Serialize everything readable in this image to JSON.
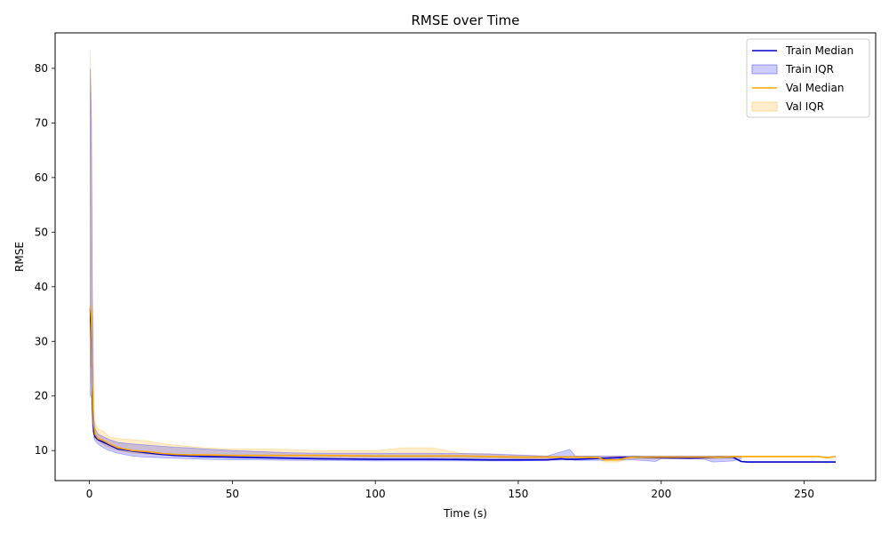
{
  "chart_data": {
    "type": "line",
    "title": "RMSE over Time",
    "xlabel": "Time (s)",
    "ylabel": "RMSE",
    "xlim": [
      -12,
      275
    ],
    "ylim": [
      4.5,
      86.5
    ],
    "xticks": [
      0,
      50,
      100,
      150,
      200,
      250
    ],
    "yticks": [
      10,
      20,
      30,
      40,
      50,
      60,
      70,
      80
    ],
    "grid": false,
    "legend_position": "top-right",
    "colors": {
      "train_line": "#0000cc",
      "train_band": "#0000ff",
      "val_line": "#ffa500",
      "val_band": "#ffa500"
    },
    "series": [
      {
        "name": "Train Median",
        "kind": "line",
        "x": [
          0.3,
          0.7,
          1,
          1.5,
          2,
          3,
          5,
          7,
          10,
          15,
          20,
          25,
          30,
          35,
          40,
          50,
          60,
          70,
          80,
          100,
          120,
          140,
          150,
          160,
          165,
          167,
          170,
          175,
          180,
          185,
          190,
          200,
          210,
          215,
          220,
          225,
          228,
          230,
          240,
          250,
          261
        ],
        "y": [
          36,
          30,
          20,
          13.5,
          12.5,
          12,
          11.5,
          11,
          10.3,
          9.9,
          9.6,
          9.3,
          9.1,
          9.0,
          8.9,
          8.8,
          8.7,
          8.6,
          8.5,
          8.4,
          8.4,
          8.3,
          8.3,
          8.3,
          8.5,
          8.4,
          8.4,
          8.5,
          8.6,
          8.7,
          8.8,
          8.7,
          8.6,
          8.7,
          8.8,
          8.8,
          8.0,
          7.9,
          7.9,
          7.9,
          7.9
        ]
      },
      {
        "name": "Train IQR",
        "kind": "band",
        "x": [
          0.3,
          0.7,
          1,
          1.5,
          2,
          3,
          5,
          7,
          10,
          15,
          20,
          25,
          30,
          35,
          40,
          50,
          60,
          70,
          80,
          100,
          120,
          140,
          150,
          160,
          168,
          170,
          180,
          190,
          198,
          200,
          210,
          215,
          218,
          222,
          225,
          228
        ],
        "low": [
          20,
          20,
          15,
          12.5,
          11.8,
          11.2,
          10.5,
          10,
          9.5,
          9.0,
          8.8,
          8.7,
          8.6,
          8.5,
          8.4,
          8.3,
          8.3,
          8.2,
          8.2,
          8.1,
          8.1,
          8.1,
          8.1,
          8.2,
          8.3,
          8.2,
          8.2,
          8.3,
          8.0,
          8.5,
          8.5,
          8.4,
          7.9,
          8.0,
          8.1,
          8.5
        ],
        "high": [
          80,
          70,
          40,
          16,
          14,
          13,
          12.5,
          12,
          11.5,
          11.2,
          11.0,
          10.8,
          10.6,
          10.5,
          10.3,
          10.0,
          9.8,
          9.6,
          9.5,
          9.5,
          9.5,
          9.4,
          9.2,
          9.0,
          10.2,
          9.0,
          9.0,
          9.0,
          9.0,
          9.0,
          9.0,
          9.0,
          9.0,
          9.0,
          9.0,
          9.0
        ]
      },
      {
        "name": "Val Median",
        "kind": "line",
        "x": [
          0.3,
          0.7,
          1,
          1.5,
          2,
          3,
          5,
          7,
          10,
          15,
          20,
          25,
          30,
          35,
          40,
          50,
          60,
          70,
          80,
          100,
          120,
          130,
          140,
          150,
          160,
          170,
          178,
          180,
          185,
          188,
          190,
          200,
          210,
          220,
          228,
          240,
          250,
          255,
          258,
          261
        ],
        "y": [
          36.5,
          34,
          22,
          15,
          13,
          12.2,
          11.8,
          11.2,
          10.5,
          10.0,
          9.8,
          9.5,
          9.3,
          9.2,
          9.2,
          9.1,
          9.1,
          9.1,
          9.1,
          9.0,
          9.0,
          9.0,
          8.9,
          8.8,
          8.8,
          8.8,
          8.7,
          8.3,
          8.3,
          8.7,
          8.8,
          8.8,
          8.8,
          8.8,
          8.9,
          8.9,
          8.9,
          8.9,
          8.7,
          8.9
        ]
      },
      {
        "name": "Val IQR",
        "kind": "band",
        "x": [
          0.3,
          0.7,
          1,
          1.5,
          2,
          3,
          5,
          7,
          10,
          15,
          20,
          25,
          30,
          40,
          50,
          60,
          70,
          80,
          100,
          110,
          120,
          130,
          140,
          150,
          160,
          170,
          178,
          180,
          185,
          188,
          190,
          200,
          210,
          220,
          228
        ],
        "low": [
          25,
          26,
          16,
          13,
          12.2,
          11.8,
          11,
          10.5,
          10,
          9.5,
          9.3,
          9.2,
          9.1,
          9.0,
          8.9,
          8.8,
          8.7,
          8.7,
          8.7,
          8.7,
          8.7,
          8.6,
          8.6,
          8.5,
          8.5,
          8.5,
          8.5,
          7.9,
          7.9,
          8.4,
          8.5,
          8.5,
          8.5,
          8.5,
          8.8
        ],
        "high": [
          83.5,
          72,
          40,
          17,
          15,
          14,
          13.5,
          12.5,
          12.2,
          12.0,
          11.8,
          11.3,
          11.0,
          10.5,
          10.3,
          10.3,
          10.2,
          10.0,
          10.0,
          10.5,
          10.5,
          9.5,
          9.3,
          9.1,
          9.0,
          9.0,
          9.0,
          9.0,
          9.0,
          9.0,
          9.0,
          9.0,
          9.0,
          9.0,
          9.0
        ]
      }
    ]
  }
}
